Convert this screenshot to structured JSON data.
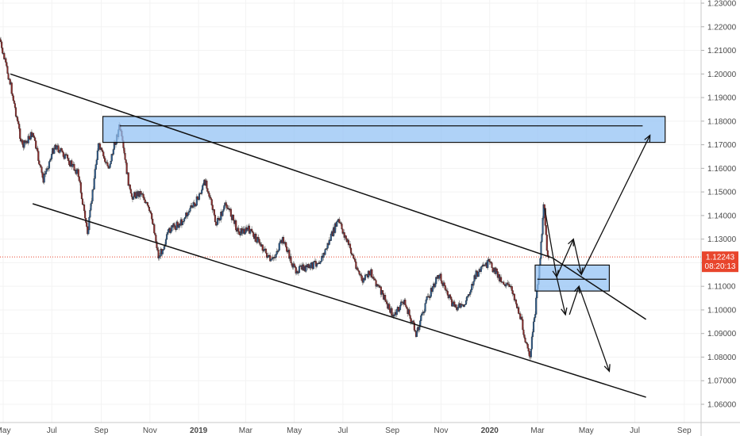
{
  "chart_data": {
    "type": "candlestick",
    "instrument_hint": "",
    "y_ticks": [
      "1.06000",
      "1.07000",
      "1.08000",
      "1.09000",
      "1.10000",
      "1.11000",
      "1.12000",
      "1.13000",
      "1.14000",
      "1.15000",
      "1.16000",
      "1.17000",
      "1.18000",
      "1.19000",
      "1.20000",
      "1.21000",
      "1.22000",
      "1.23000"
    ],
    "x_ticks": [
      {
        "label": "May",
        "bold": false
      },
      {
        "label": "Jul",
        "bold": false
      },
      {
        "label": "Sep",
        "bold": false
      },
      {
        "label": "Nov",
        "bold": false
      },
      {
        "label": "2019",
        "bold": true
      },
      {
        "label": "Mar",
        "bold": false
      },
      {
        "label": "May",
        "bold": false
      },
      {
        "label": "Jul",
        "bold": false
      },
      {
        "label": "Sep",
        "bold": false
      },
      {
        "label": "Nov",
        "bold": false
      },
      {
        "label": "2020",
        "bold": true
      },
      {
        "label": "Mar",
        "bold": false
      },
      {
        "label": "May",
        "bold": false
      },
      {
        "label": "Jul",
        "bold": false
      },
      {
        "label": "Sep",
        "bold": false
      }
    ],
    "current_price": {
      "label": "1.12243",
      "value": 1.12243,
      "countdown": "08:20:13",
      "color": "#e8452c"
    },
    "price_path": [
      [
        "2018-04-26",
        1.215
      ],
      [
        "2018-05-10",
        1.196
      ],
      [
        "2018-05-25",
        1.169
      ],
      [
        "2018-06-07",
        1.175
      ],
      [
        "2018-06-20",
        1.155
      ],
      [
        "2018-07-05",
        1.17
      ],
      [
        "2018-07-20",
        1.164
      ],
      [
        "2018-08-03",
        1.158
      ],
      [
        "2018-08-15",
        1.132
      ],
      [
        "2018-08-28",
        1.17
      ],
      [
        "2018-09-10",
        1.16
      ],
      [
        "2018-09-24",
        1.178
      ],
      [
        "2018-10-08",
        1.148
      ],
      [
        "2018-10-22",
        1.15
      ],
      [
        "2018-11-05",
        1.137
      ],
      [
        "2018-11-12",
        1.122
      ],
      [
        "2018-11-26",
        1.134
      ],
      [
        "2018-12-10",
        1.137
      ],
      [
        "2018-12-31",
        1.147
      ],
      [
        "2019-01-10",
        1.155
      ],
      [
        "2019-01-23",
        1.136
      ],
      [
        "2019-02-05",
        1.145
      ],
      [
        "2019-02-20",
        1.133
      ],
      [
        "2019-03-05",
        1.134
      ],
      [
        "2019-03-20",
        1.128
      ],
      [
        "2019-04-02",
        1.12
      ],
      [
        "2019-04-17",
        1.13
      ],
      [
        "2019-05-01",
        1.117
      ],
      [
        "2019-05-20",
        1.118
      ],
      [
        "2019-06-05",
        1.122
      ],
      [
        "2019-06-25",
        1.138
      ],
      [
        "2019-07-10",
        1.126
      ],
      [
        "2019-07-25",
        1.112
      ],
      [
        "2019-08-05",
        1.116
      ],
      [
        "2019-08-20",
        1.106
      ],
      [
        "2019-09-03",
        1.097
      ],
      [
        "2019-09-15",
        1.104
      ],
      [
        "2019-10-01",
        1.09
      ],
      [
        "2019-10-15",
        1.105
      ],
      [
        "2019-10-30",
        1.115
      ],
      [
        "2019-11-15",
        1.102
      ],
      [
        "2019-11-29",
        1.101
      ],
      [
        "2019-12-15",
        1.115
      ],
      [
        "2019-12-31",
        1.12
      ],
      [
        "2020-01-15",
        1.113
      ],
      [
        "2020-01-30",
        1.108
      ],
      [
        "2020-02-10",
        1.095
      ],
      [
        "2020-02-20",
        1.079
      ],
      [
        "2020-02-27",
        1.099
      ],
      [
        "2020-03-05",
        1.125
      ],
      [
        "2020-03-09",
        1.148
      ],
      [
        "2020-03-11",
        1.134
      ],
      [
        "2020-03-13",
        1.125
      ],
      [
        "2020-03-15",
        1.122
      ]
    ],
    "trend_lines": [
      {
        "from": [
          "2018-05-10",
          1.2
        ],
        "to": [
          "2020-03-20",
          1.122
        ]
      },
      {
        "from": [
          "2020-03-20",
          1.122
        ],
        "to": [
          "2020-07-15",
          1.096
        ]
      },
      {
        "from": [
          "2018-06-07",
          1.145
        ],
        "to": [
          "2020-07-15",
          1.063
        ]
      }
    ],
    "zones": [
      {
        "from": [
          "2018-09-03",
          1.182
        ],
        "to": [
          "2020-08-08",
          1.171
        ],
        "mid": 1.178,
        "color": "#90c0f4"
      },
      {
        "from": [
          "2020-02-27",
          1.119
        ],
        "to": [
          "2020-05-30",
          1.108
        ],
        "mid": 1.113,
        "color": "#90c0f4"
      }
    ],
    "projection_arrows": [
      {
        "from": [
          "2020-03-10",
          1.143
        ],
        "to": [
          "2020-03-25",
          1.114
        ]
      },
      {
        "from": [
          "2020-03-25",
          1.114
        ],
        "to": [
          "2020-04-15",
          1.13
        ]
      },
      {
        "from": [
          "2020-04-15",
          1.13
        ],
        "to": [
          "2020-04-25",
          1.115
        ]
      },
      {
        "from": [
          "2020-04-25",
          1.115
        ],
        "to": [
          "2020-07-20",
          1.174
        ]
      },
      {
        "from": [
          "2020-03-25",
          1.114
        ],
        "to": [
          "2020-04-05",
          1.098
        ]
      },
      {
        "from": [
          "2020-04-10",
          1.098
        ],
        "to": [
          "2020-04-22",
          1.11
        ]
      },
      {
        "from": [
          "2020-04-22",
          1.11
        ],
        "to": [
          "2020-05-30",
          1.074
        ]
      }
    ]
  }
}
